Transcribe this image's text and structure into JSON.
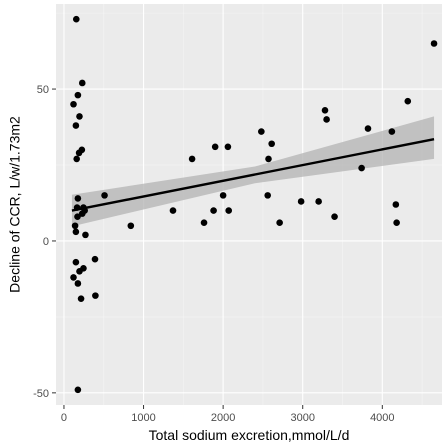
{
  "chart_data": {
    "type": "scatter",
    "title": "",
    "xlabel": "Total sodium excretion,mmol/L/d",
    "ylabel": "Decline of CCR, L/w/1.73m2",
    "xlim": [
      -100,
      4750
    ],
    "ylim": [
      -54,
      78
    ],
    "x_ticks": [
      0,
      1000,
      2000,
      3000,
      4000
    ],
    "y_ticks": [
      -50,
      0,
      50
    ],
    "grid": true,
    "legend": "none",
    "colors": {
      "panel": "#ebebeb",
      "grid_major": "#ffffff",
      "grid_minor": "#f5f5f5",
      "point": "#000000",
      "fit_line": "#000000",
      "band": "#b3b3b3"
    },
    "points": [
      {
        "x": 155,
        "y": 73
      },
      {
        "x": 120,
        "y": 45
      },
      {
        "x": 175,
        "y": 48
      },
      {
        "x": 230,
        "y": 52
      },
      {
        "x": 150,
        "y": 38
      },
      {
        "x": 195,
        "y": 41
      },
      {
        "x": 160,
        "y": 27
      },
      {
        "x": 190,
        "y": 29
      },
      {
        "x": 225,
        "y": 30
      },
      {
        "x": 175,
        "y": 14
      },
      {
        "x": 165,
        "y": 11
      },
      {
        "x": 170,
        "y": 8
      },
      {
        "x": 140,
        "y": 5
      },
      {
        "x": 150,
        "y": 3
      },
      {
        "x": 245,
        "y": 11
      },
      {
        "x": 230,
        "y": 9
      },
      {
        "x": 260,
        "y": 10
      },
      {
        "x": 270,
        "y": 2
      },
      {
        "x": 150,
        "y": -7
      },
      {
        "x": 195,
        "y": -10
      },
      {
        "x": 245,
        "y": -9
      },
      {
        "x": 120,
        "y": -12
      },
      {
        "x": 175,
        "y": -14
      },
      {
        "x": 215,
        "y": -19
      },
      {
        "x": 390,
        "y": -6
      },
      {
        "x": 395,
        "y": -18
      },
      {
        "x": 175,
        "y": -49
      },
      {
        "x": 510,
        "y": 15
      },
      {
        "x": 840,
        "y": 5
      },
      {
        "x": 1370,
        "y": 10
      },
      {
        "x": 1610,
        "y": 27
      },
      {
        "x": 1760,
        "y": 6
      },
      {
        "x": 1880,
        "y": 10
      },
      {
        "x": 1900,
        "y": 31
      },
      {
        "x": 2000,
        "y": 15
      },
      {
        "x": 2060,
        "y": 31
      },
      {
        "x": 2070,
        "y": 10
      },
      {
        "x": 2480,
        "y": 36
      },
      {
        "x": 2560,
        "y": 15
      },
      {
        "x": 2570,
        "y": 27
      },
      {
        "x": 2610,
        "y": 32
      },
      {
        "x": 2710,
        "y": 6
      },
      {
        "x": 2980,
        "y": 13
      },
      {
        "x": 3200,
        "y": 13
      },
      {
        "x": 3280,
        "y": 43
      },
      {
        "x": 3300,
        "y": 40
      },
      {
        "x": 3400,
        "y": 8
      },
      {
        "x": 3740,
        "y": 24
      },
      {
        "x": 3820,
        "y": 37
      },
      {
        "x": 4120,
        "y": 36
      },
      {
        "x": 4170,
        "y": 12
      },
      {
        "x": 4180,
        "y": 6
      },
      {
        "x": 4320,
        "y": 46
      },
      {
        "x": 4650,
        "y": 65
      }
    ],
    "fit": {
      "x": [
        100,
        4650
      ],
      "y": [
        10,
        33.5
      ],
      "band_lower": [
        4.8,
        27
      ],
      "band_upper": [
        15.2,
        41
      ],
      "band_mid_x": 2400,
      "band_mid_lower": [
        19,
        24.5
      ]
    }
  }
}
